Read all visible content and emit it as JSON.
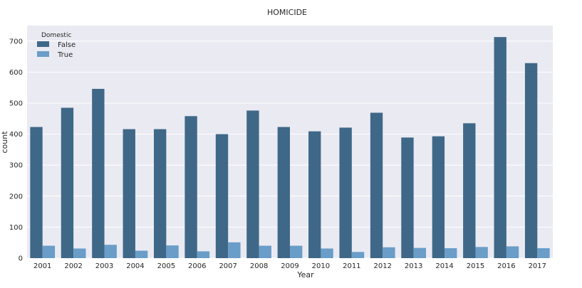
{
  "chart_data": {
    "type": "bar",
    "title": "HOMICIDE",
    "xlabel": "Year",
    "ylabel": "count",
    "ylim": [
      0,
      750
    ],
    "yticks": [
      0,
      100,
      200,
      300,
      400,
      500,
      600,
      700
    ],
    "grid": true,
    "legend": {
      "title": "Domestic",
      "position": "top-left"
    },
    "categories": [
      "2001",
      "2002",
      "2003",
      "2004",
      "2005",
      "2006",
      "2007",
      "2008",
      "2009",
      "2010",
      "2011",
      "2012",
      "2013",
      "2014",
      "2015",
      "2016",
      "2017"
    ],
    "series": [
      {
        "name": "False",
        "color": "#3f6888",
        "values": [
          423,
          485,
          546,
          416,
          416,
          458,
          400,
          476,
          423,
          409,
          421,
          469,
          389,
          393,
          435,
          713,
          629
        ]
      },
      {
        "name": "True",
        "color": "#6a9dc8",
        "values": [
          40,
          31,
          43,
          24,
          41,
          22,
          51,
          40,
          40,
          31,
          20,
          35,
          33,
          32,
          36,
          38,
          32
        ]
      }
    ]
  }
}
